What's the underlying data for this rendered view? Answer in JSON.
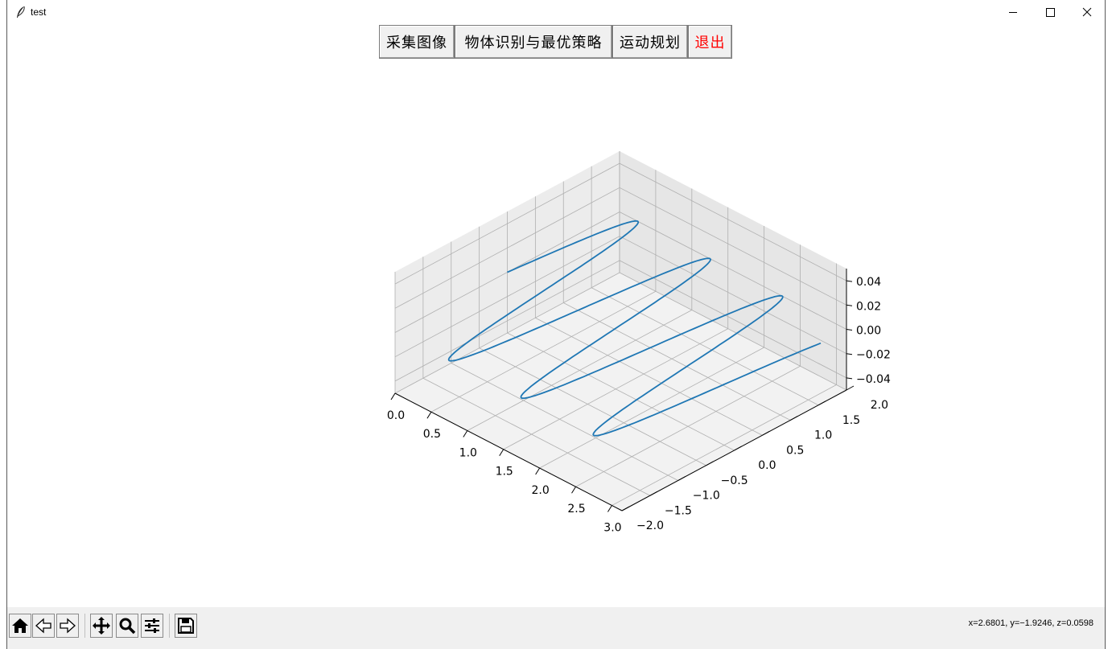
{
  "window": {
    "title": "test"
  },
  "menu": {
    "capture": "采集图像",
    "recognize": "物体识别与最优策略",
    "motion": "运动规划",
    "exit": "退出"
  },
  "colors": {
    "exit_text": "#ff0000",
    "series": "#1f77b4",
    "pane": "#f2f2f2",
    "grid": "#b0b0b0"
  },
  "chart_data": {
    "type": "line3d",
    "x_ticks": [
      "0.0",
      "0.5",
      "1.0",
      "1.5",
      "2.0",
      "2.5",
      "3.0"
    ],
    "y_ticks": [
      "−2.0",
      "−1.5",
      "−1.0",
      "−0.5",
      "0.0",
      "0.5",
      "1.0",
      "1.5",
      "2.0"
    ],
    "z_ticks": [
      "−0.04",
      "−0.02",
      "0.00",
      "0.02",
      "0.04"
    ],
    "xlim": [
      0,
      3.14
    ],
    "ylim": [
      -2,
      2
    ],
    "zlim": [
      -0.05,
      0.05
    ],
    "series": [
      {
        "function": "y = 2*sin(2*pi*x), z = 0, x in [0, 3.14]"
      }
    ],
    "grid": true
  },
  "toolbar": {
    "icons": [
      "home-icon",
      "back-icon",
      "forward-icon",
      "pan-icon",
      "zoom-icon",
      "configure-icon",
      "save-icon"
    ],
    "coords": "x=2.6801, y=−1.9246, z=0.0598"
  }
}
